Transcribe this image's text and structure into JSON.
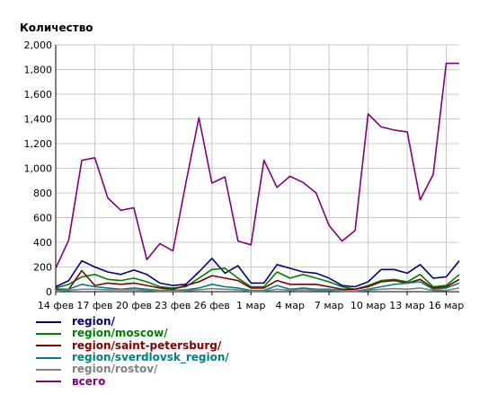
{
  "chart_data": {
    "type": "line",
    "ylabel": "Количество",
    "ylim": [
      0,
      2000
    ],
    "y_ticks": [
      0,
      200,
      400,
      600,
      800,
      1000,
      1200,
      1400,
      1600,
      1800,
      2000
    ],
    "y_tick_labels": [
      "0",
      "200",
      "400",
      "600",
      "800",
      "1,000",
      "1,200",
      "1,400",
      "1,600",
      "1,800",
      "2,000"
    ],
    "x_tick_labels": [
      "14 фев",
      "17 фев",
      "20 фев",
      "23 фев",
      "26 фев",
      "1 мар",
      "4 мар",
      "7 мар",
      "10 мар",
      "13 мар",
      "16 мар"
    ],
    "categories": [
      "14 фев",
      "15 фев",
      "16 фев",
      "17 фев",
      "18 фев",
      "19 фев",
      "20 фев",
      "21 фев",
      "22 фев",
      "23 фев",
      "24 фев",
      "25 фев",
      "26 фев",
      "27 фев",
      "28 фев",
      "29 фев",
      "1 мар",
      "2 мар",
      "3 мар",
      "4 мар",
      "5 мар",
      "6 мар",
      "7 мар",
      "8 мар",
      "9 мар",
      "10 мар",
      "11 мар",
      "12 мар",
      "13 мар",
      "14 мар",
      "15 мар",
      "16 мар"
    ],
    "grid": true,
    "legend_position": "bottom",
    "series": [
      {
        "name": "region/",
        "color": "#000080",
        "values": [
          40,
          90,
          250,
          200,
          160,
          140,
          175,
          140,
          70,
          50,
          60,
          160,
          270,
          150,
          210,
          70,
          70,
          220,
          190,
          160,
          150,
          110,
          50,
          40,
          80,
          180,
          180,
          150,
          220,
          110,
          120,
          250
        ]
      },
      {
        "name": "region/moscow/",
        "color": "#008000",
        "values": [
          30,
          60,
          120,
          140,
          100,
          90,
          110,
          80,
          40,
          30,
          40,
          110,
          180,
          190,
          110,
          40,
          40,
          160,
          110,
          140,
          110,
          80,
          40,
          20,
          50,
          90,
          100,
          80,
          140,
          40,
          50,
          140
        ]
      },
      {
        "name": "region/saint-petersburg/",
        "color": "#800000",
        "values": [
          20,
          20,
          170,
          50,
          70,
          60,
          70,
          50,
          30,
          20,
          50,
          80,
          130,
          110,
          90,
          30,
          30,
          90,
          60,
          60,
          60,
          40,
          20,
          20,
          40,
          80,
          90,
          70,
          100,
          30,
          40,
          100
        ]
      },
      {
        "name": "region/sverdlovsk_region/",
        "color": "#008080",
        "values": [
          10,
          20,
          60,
          40,
          30,
          20,
          30,
          20,
          10,
          10,
          15,
          30,
          60,
          40,
          30,
          10,
          10,
          50,
          20,
          30,
          20,
          20,
          10,
          5,
          20,
          40,
          60,
          70,
          80,
          20,
          30,
          70
        ]
      },
      {
        "name": "region/rostov/",
        "color": "#808080",
        "values": [
          5,
          10,
          20,
          20,
          15,
          15,
          15,
          10,
          5,
          5,
          8,
          15,
          25,
          20,
          15,
          5,
          5,
          20,
          10,
          15,
          10,
          10,
          5,
          5,
          10,
          20,
          25,
          20,
          30,
          10,
          10,
          30
        ]
      },
      {
        "name": "всего",
        "color": "#800080",
        "values": [
          190,
          420,
          1065,
          1085,
          760,
          660,
          680,
          260,
          390,
          330,
          880,
          1410,
          880,
          930,
          410,
          380,
          1065,
          845,
          935,
          885,
          800,
          535,
          410,
          495,
          1440,
          1335,
          1310,
          1295,
          745,
          950,
          1850,
          1850
        ]
      }
    ]
  }
}
